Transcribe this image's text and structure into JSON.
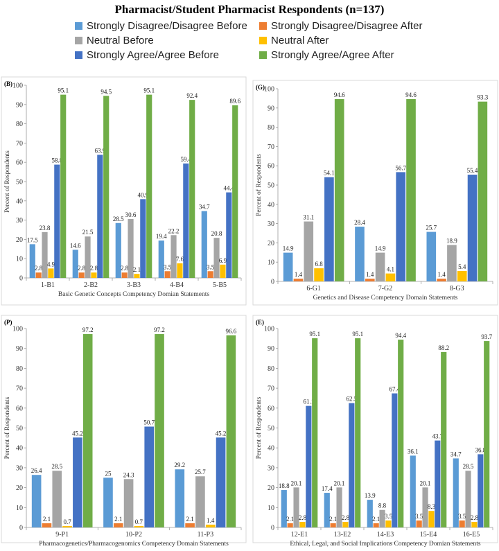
{
  "title": "Pharmacist/Student Pharmacist Respondents (n=137)",
  "series_names": [
    "Strongly Disagree/Disagree Before",
    "Strongly Disagree/Disagree After",
    "Neutral Before",
    "Neutral After",
    "Strongly Agree/Agree Before",
    "Strongly Agree/Agree After"
  ],
  "colors": [
    "#5B9BD5",
    "#ED7D31",
    "#A5A5A5",
    "#FFC000",
    "#4472C4",
    "#70AD47"
  ],
  "chart_data": [
    {
      "type": "bar",
      "panel_label": "(B)",
      "xlabel": "Basic Genetic Concepts Competency Domian Statements",
      "ylabel": "Percent of Respondents",
      "ylim": [
        0,
        100
      ],
      "yticks": [
        "0",
        "10",
        "20",
        "30",
        "40",
        "50",
        "60",
        "70",
        "80",
        "90",
        "100"
      ],
      "categories": [
        "1-B1",
        "2-B2",
        "3-B3",
        "4-B4",
        "5-B5"
      ],
      "series": [
        {
          "name": "Strongly Disagree/Disagree Before",
          "values": [
            17.5,
            14.6,
            28.5,
            19.4,
            34.7
          ]
        },
        {
          "name": "Strongly Disagree/Disagree After",
          "values": [
            2.8,
            2.8,
            2.8,
            3.5,
            3.5
          ]
        },
        {
          "name": "Neutral Before",
          "values": [
            23.8,
            21.5,
            30.6,
            22.2,
            20.8
          ]
        },
        {
          "name": "Neutral After",
          "values": [
            4.9,
            2.8,
            2.1,
            7.6,
            6.9
          ]
        },
        {
          "name": "Strongly Agree/Agree Before",
          "values": [
            58.8,
            63.9,
            40.9,
            59.4,
            44.4
          ]
        },
        {
          "name": "Strongly Agree/Agree After",
          "values": [
            95.1,
            94.5,
            95.1,
            92.4,
            89.6
          ]
        }
      ]
    },
    {
      "type": "bar",
      "panel_label": "(G)",
      "xlabel": "Genetics and Disease Competency Domain Statements",
      "ylabel": "Percent of Respondents",
      "ylim": [
        0,
        100
      ],
      "yticks": [
        "0",
        "10",
        "20",
        "30",
        "40",
        "50",
        "60",
        "70",
        "80",
        "90",
        "100"
      ],
      "categories": [
        "6-G1",
        "7-G2",
        "8-G3"
      ],
      "series": [
        {
          "name": "Strongly Disagree/Disagree Before",
          "values": [
            14.9,
            28.4,
            25.7
          ]
        },
        {
          "name": "Strongly Disagree/Disagree After",
          "values": [
            1.4,
            1.4,
            1.4
          ]
        },
        {
          "name": "Neutral Before",
          "values": [
            31.1,
            14.9,
            18.9
          ]
        },
        {
          "name": "Neutral After",
          "values": [
            6.8,
            4.1,
            5.4
          ]
        },
        {
          "name": "Strongly Agree/Agree Before",
          "values": [
            54.1,
            56.7,
            55.4
          ]
        },
        {
          "name": "Strongly Agree/Agree After",
          "values": [
            94.6,
            94.6,
            93.3
          ]
        }
      ]
    },
    {
      "type": "bar",
      "panel_label": "(P)",
      "xlabel": "Pharmacogenetics/Pharmacogenomics Competency Domain Statements",
      "ylabel": "Percent of Respondents",
      "ylim": [
        0,
        100
      ],
      "yticks": [
        "0",
        "10",
        "20",
        "30",
        "40",
        "50",
        "60",
        "70",
        "80",
        "90",
        "100"
      ],
      "categories": [
        "9-P1",
        "10-P2",
        "11-P3"
      ],
      "series": [
        {
          "name": "Strongly Disagree/Disagree Before",
          "values": [
            26.4,
            25,
            29.2
          ]
        },
        {
          "name": "Strongly Disagree/Disagree After",
          "values": [
            2.1,
            2.1,
            2.1
          ]
        },
        {
          "name": "Neutral Before",
          "values": [
            28.5,
            24.3,
            25.7
          ]
        },
        {
          "name": "Neutral After",
          "values": [
            0.7,
            0.7,
            1.4
          ]
        },
        {
          "name": "Strongly Agree/Agree Before",
          "values": [
            45.2,
            50.7,
            45.2
          ]
        },
        {
          "name": "Strongly Agree/Agree After",
          "values": [
            97.2,
            97.2,
            96.6
          ]
        }
      ]
    },
    {
      "type": "bar",
      "panel_label": "(E)",
      "xlabel": "Ethical, Legal, and Social Implications Competency Domian Statements",
      "ylabel": "Percent of Respondents",
      "ylim": [
        0,
        100
      ],
      "yticks": [
        "0",
        "10",
        "20",
        "30",
        "40",
        "50",
        "60",
        "70",
        "80",
        "90",
        "100"
      ],
      "categories": [
        "12-E1",
        "13-E2",
        "14-E3",
        "15-E4",
        "16-E5"
      ],
      "series": [
        {
          "name": "Strongly Disagree/Disagree Before",
          "values": [
            18.8,
            17.4,
            13.9,
            36.1,
            34.7
          ]
        },
        {
          "name": "Strongly Disagree/Disagree After",
          "values": [
            2.1,
            2.1,
            2.1,
            3.5,
            3.5
          ]
        },
        {
          "name": "Neutral Before",
          "values": [
            20.1,
            20.1,
            8.8,
            20.1,
            28.5
          ]
        },
        {
          "name": "Neutral After",
          "values": [
            2.8,
            2.8,
            3.5,
            8.3,
            2.8
          ]
        },
        {
          "name": "Strongly Agree/Agree Before",
          "values": [
            61.1,
            62.5,
            67.4,
            43.7,
            36.8
          ]
        },
        {
          "name": "Strongly Agree/Agree After",
          "values": [
            95.1,
            95.1,
            94.4,
            88.2,
            93.7
          ]
        }
      ]
    }
  ]
}
